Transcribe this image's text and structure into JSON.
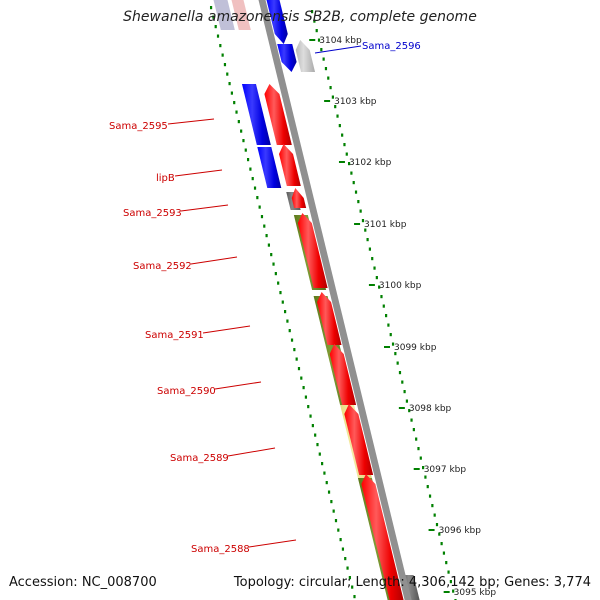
{
  "title": "Shewanella amazonensis SB2B, complete genome",
  "accession": "Accession: NC_008700",
  "summary": "Topology: circular; Length: 4,306,142 bp; Genes: 3,774",
  "colors": {
    "forward_cds": "#ff0000",
    "reverse_cds": "#0000ff",
    "gene_band": "#6b8e23",
    "highlight_band": "#f0e68c",
    "rna_gray": "#808080",
    "backbone": "#909090",
    "tick_green": "#008000",
    "label_red": "#cc0000",
    "label_blue": "#0000cc"
  },
  "ruler_ticks": [
    {
      "label": "3104 kbp"
    },
    {
      "label": "3103 kbp"
    },
    {
      "label": "3102 kbp"
    },
    {
      "label": "3101 kbp"
    },
    {
      "label": "3100 kbp"
    },
    {
      "label": "3099 kbp"
    },
    {
      "label": "3098 kbp"
    },
    {
      "label": "3097 kbp"
    },
    {
      "label": "3096 kbp"
    },
    {
      "label": "3095 kbp"
    }
  ],
  "gene_labels": [
    {
      "name": "Sama_2596",
      "color": "blue"
    },
    {
      "name": "Sama_2595",
      "color": "red"
    },
    {
      "name": "lipB",
      "color": "red"
    },
    {
      "name": "Sama_2593",
      "color": "red"
    },
    {
      "name": "Sama_2592",
      "color": "red"
    },
    {
      "name": "Sama_2591",
      "color": "red"
    },
    {
      "name": "Sama_2590",
      "color": "red"
    },
    {
      "name": "Sama_2589",
      "color": "red"
    },
    {
      "name": "Sama_2588",
      "color": "red"
    }
  ]
}
